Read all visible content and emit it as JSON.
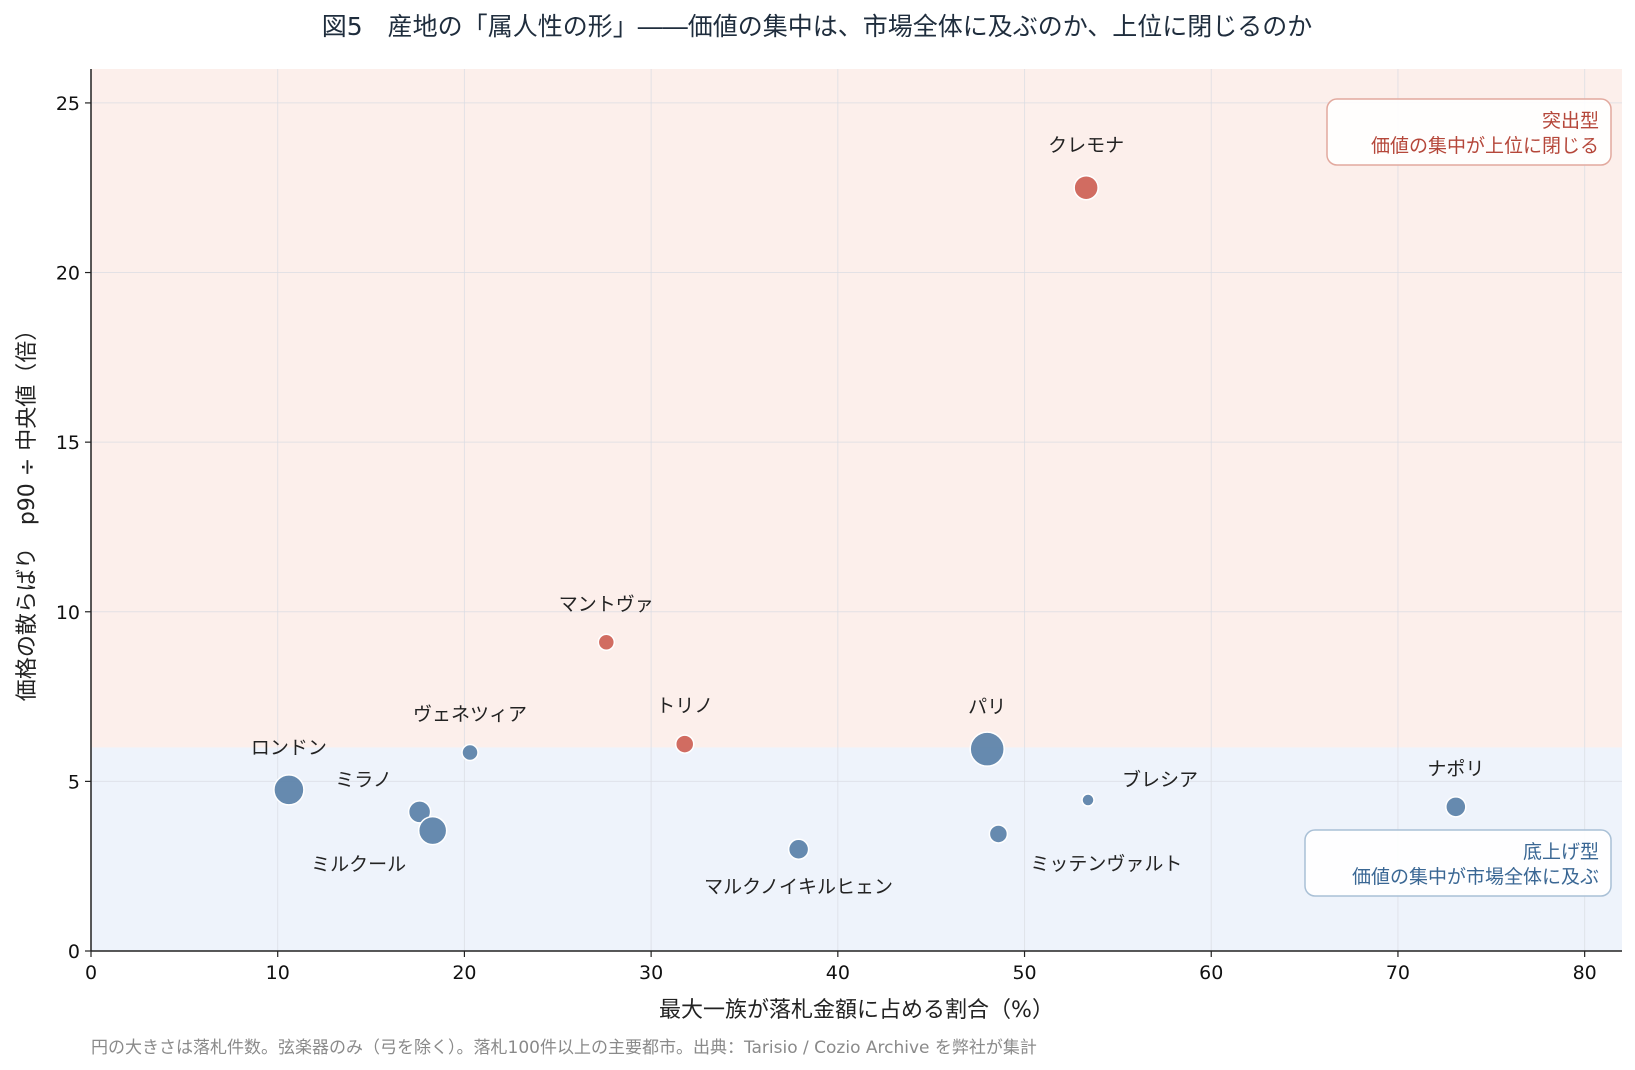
{
  "chart_data": {
    "type": "scatter",
    "title": "図5　産地の「属人性の形」――価値の集中は、市場全体に及ぶのか、上位に閉じるのか",
    "xlabel": "最大一族が落札金額に占める割合（%）",
    "ylabel": "価格の散らばり　p90 ÷ 中央値（倍）",
    "xlim": [
      0,
      82
    ],
    "ylim": [
      0,
      26
    ],
    "x_ticks": [
      0,
      10,
      20,
      30,
      40,
      50,
      60,
      70,
      80
    ],
    "y_ticks": [
      0,
      5,
      10,
      15,
      20,
      25
    ],
    "grid": true,
    "threshold_y": 6,
    "regions": {
      "upper": {
        "label_line1": "突出型",
        "label_line2": "価値の集中が上位に閉じる",
        "color": "#fcefeb",
        "text_color": "#b5473a"
      },
      "lower": {
        "label_line1": "底上げ型",
        "label_line2": "価値の集中が市場全体に及ぶ",
        "color": "#eef3fb",
        "text_color": "#3a6794"
      }
    },
    "colors": {
      "outstanding": "#cd6155",
      "broad": "#5a81a8"
    },
    "points": [
      {
        "name": "クレモナ",
        "x": 53.3,
        "y": 22.5,
        "size": 12,
        "group": "outstanding"
      },
      {
        "name": "マントヴァ",
        "x": 27.6,
        "y": 9.1,
        "size": 8,
        "group": "outstanding"
      },
      {
        "name": "トリノ",
        "x": 31.8,
        "y": 6.1,
        "size": 9,
        "group": "outstanding"
      },
      {
        "name": "パリ",
        "x": 48.0,
        "y": 5.95,
        "size": 17,
        "group": "broad"
      },
      {
        "name": "ヴェネツィア",
        "x": 20.3,
        "y": 5.85,
        "size": 8,
        "group": "broad"
      },
      {
        "name": "ロンドン",
        "x": 10.6,
        "y": 4.75,
        "size": 15,
        "group": "broad"
      },
      {
        "name": "ミラノ",
        "x": 17.6,
        "y": 4.1,
        "size": 11,
        "group": "broad"
      },
      {
        "name": "ミルクール",
        "x": 18.3,
        "y": 3.55,
        "size": 14,
        "group": "broad"
      },
      {
        "name": "マルクノイキルヒェン",
        "x": 37.9,
        "y": 3.0,
        "size": 10,
        "group": "broad"
      },
      {
        "name": "ミッテンヴァルト",
        "x": 48.6,
        "y": 3.45,
        "size": 9,
        "group": "broad"
      },
      {
        "name": "ブレシア",
        "x": 53.4,
        "y": 4.45,
        "size": 6,
        "group": "broad"
      },
      {
        "name": "ナポリ",
        "x": 73.1,
        "y": 4.25,
        "size": 10,
        "group": "broad"
      }
    ],
    "note": "円の大きさは落札件数。弦楽器のみ（弓を除く）。落札100件以上の主要都市。出典：Tarisio / Cozio Archive を弊社が集計"
  }
}
